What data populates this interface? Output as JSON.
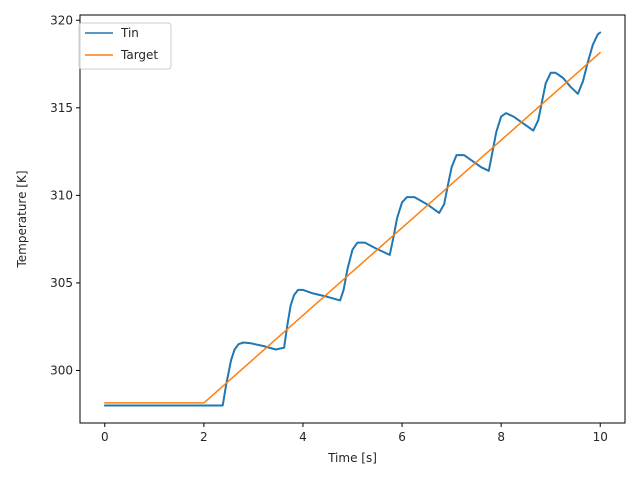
{
  "chart_data": {
    "type": "line",
    "xlabel": "Time [s]",
    "ylabel": "Temperature [K]",
    "xlim": [
      -0.5,
      10.5
    ],
    "ylim": [
      297.0,
      320.3
    ],
    "xticks": [
      0,
      2,
      4,
      6,
      8,
      10
    ],
    "yticks": [
      300,
      305,
      310,
      315,
      320
    ],
    "grid": false,
    "legend_position": "top-left",
    "series": [
      {
        "name": "Tin",
        "color": "#1f77b4",
        "x": [
          0,
          2.38,
          2.45,
          2.55,
          2.62,
          2.7,
          2.8,
          2.95,
          3.2,
          3.45,
          3.62,
          3.68,
          3.75,
          3.82,
          3.9,
          4.0,
          4.2,
          4.5,
          4.75,
          4.82,
          4.9,
          5.0,
          5.1,
          5.25,
          5.45,
          5.6,
          5.75,
          5.82,
          5.9,
          6.0,
          6.1,
          6.25,
          6.5,
          6.75,
          6.85,
          6.92,
          7.0,
          7.1,
          7.25,
          7.45,
          7.6,
          7.75,
          7.82,
          7.9,
          8.0,
          8.1,
          8.25,
          8.5,
          8.65,
          8.75,
          8.82,
          8.9,
          9.0,
          9.1,
          9.25,
          9.4,
          9.55,
          9.65,
          9.75,
          9.85,
          9.95,
          10.0
        ],
        "y": [
          298.0,
          298.0,
          299.2,
          300.6,
          301.2,
          301.5,
          301.6,
          301.55,
          301.4,
          301.2,
          301.3,
          302.5,
          303.7,
          304.3,
          304.6,
          304.6,
          304.4,
          304.2,
          304.0,
          304.6,
          305.8,
          306.9,
          307.3,
          307.3,
          307.0,
          306.8,
          306.6,
          307.5,
          308.7,
          309.6,
          309.9,
          309.9,
          309.5,
          309.0,
          309.5,
          310.5,
          311.6,
          312.3,
          312.3,
          311.9,
          311.6,
          311.4,
          312.4,
          313.6,
          314.5,
          314.7,
          314.5,
          314.0,
          313.7,
          314.3,
          315.3,
          316.4,
          317.0,
          317.0,
          316.7,
          316.2,
          315.8,
          316.5,
          317.6,
          318.6,
          319.2,
          319.3
        ]
      },
      {
        "name": "Target",
        "color": "#ff7f0e",
        "x": [
          0,
          2,
          10
        ],
        "y": [
          298.15,
          298.15,
          318.15
        ]
      }
    ]
  }
}
